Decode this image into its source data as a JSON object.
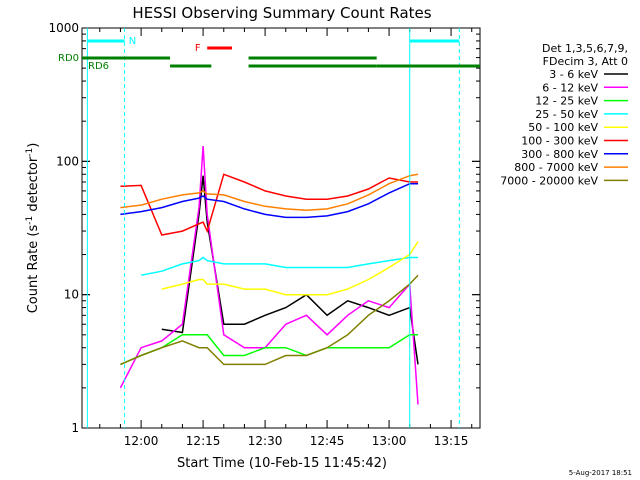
{
  "chart_data": {
    "type": "line",
    "title": "HESSI Observing Summary Count Rates",
    "xlabel": "Start Time (10-Feb-15 11:45:42)",
    "ylabel_main": "Count Rate (s",
    "ylabel_sup1": "-1",
    "ylabel_mid": " detector",
    "ylabel_sup2": "-1",
    "ylabel_end": ")",
    "yscale": "log",
    "ylim": [
      1,
      1000
    ],
    "xlim": [
      "11:45:42",
      "13:22:00"
    ],
    "x_tick_labels": [
      "12:00",
      "12:15",
      "12:30",
      "12:45",
      "13:00",
      "13:15"
    ],
    "y_tick_labels": [
      "1",
      "10",
      "100",
      "1000"
    ],
    "timestamp": "5-Aug-2017 18:51",
    "legend_header": [
      "Det 1,3,5,6,7,9,",
      "FDecim 3, Att 0"
    ],
    "annotations": {
      "night": "N",
      "flare": "F",
      "rd0": "RD0",
      "rd6": "RD6",
      "colors": {
        "night": "#00ffff",
        "flare": "#ff0000",
        "rd": "#008000"
      }
    },
    "x_hours": [
      "11:45",
      "11:55",
      "12:00",
      "12:05",
      "12:10",
      "12:14",
      "12:15",
      "12:16",
      "12:20",
      "12:25",
      "12:30",
      "12:35",
      "12:40",
      "12:45",
      "12:50",
      "12:55",
      "13:00",
      "13:05",
      "13:07",
      "13:08"
    ],
    "series": [
      {
        "name": "3 - 6 keV",
        "color": "#000000",
        "values": [
          null,
          null,
          null,
          5.5,
          5.2,
          40,
          78,
          35,
          6,
          6,
          7,
          8,
          10,
          7,
          9,
          8,
          7,
          8,
          3,
          null
        ]
      },
      {
        "name": "6 - 12 keV",
        "color": "#ff00ff",
        "values": [
          null,
          2,
          4,
          4.5,
          6,
          45,
          130,
          40,
          5,
          4,
          4,
          6,
          7,
          5,
          7,
          9,
          8,
          12,
          1.5,
          null
        ]
      },
      {
        "name": "12 - 25 keV",
        "color": "#00ff00",
        "values": [
          null,
          3,
          3.5,
          4,
          5,
          5,
          5,
          5,
          3.5,
          3.5,
          4,
          4,
          3.5,
          4,
          4,
          4,
          4,
          5,
          5,
          null
        ]
      },
      {
        "name": "25 - 50 keV",
        "color": "#00ffff",
        "values": [
          null,
          null,
          14,
          15,
          17,
          18,
          19,
          18,
          17,
          17,
          17,
          16,
          16,
          16,
          16,
          17,
          18,
          19,
          19,
          null
        ]
      },
      {
        "name": "50 - 100 keV",
        "color": "#ffff00",
        "values": [
          null,
          null,
          null,
          11,
          12,
          13,
          13,
          12,
          12,
          11,
          11,
          10,
          10,
          10,
          11,
          13,
          16,
          20,
          25,
          null
        ]
      },
      {
        "name": "100 - 300 keV",
        "color": "#ff0000",
        "values": [
          null,
          65,
          66,
          28,
          30,
          34,
          35,
          30,
          80,
          70,
          60,
          55,
          52,
          52,
          55,
          62,
          75,
          70,
          70,
          null
        ]
      },
      {
        "name": "300 - 800 keV",
        "color": "#0000ff",
        "values": [
          null,
          40,
          42,
          45,
          50,
          53,
          55,
          52,
          50,
          44,
          40,
          38,
          38,
          39,
          42,
          48,
          58,
          68,
          68,
          null
        ]
      },
      {
        "name": "800 - 7000 keV",
        "color": "#ff8000",
        "values": [
          null,
          45,
          47,
          52,
          56,
          58,
          60,
          57,
          56,
          50,
          46,
          44,
          43,
          44,
          48,
          56,
          68,
          78,
          80,
          null
        ]
      },
      {
        "name": "7000 - 20000 keV",
        "color": "#808000",
        "values": [
          null,
          3,
          3.5,
          4,
          4.5,
          4,
          4,
          4,
          3,
          3,
          3,
          3.5,
          3.5,
          4,
          5,
          7,
          9,
          12,
          14,
          null
        ]
      }
    ]
  }
}
